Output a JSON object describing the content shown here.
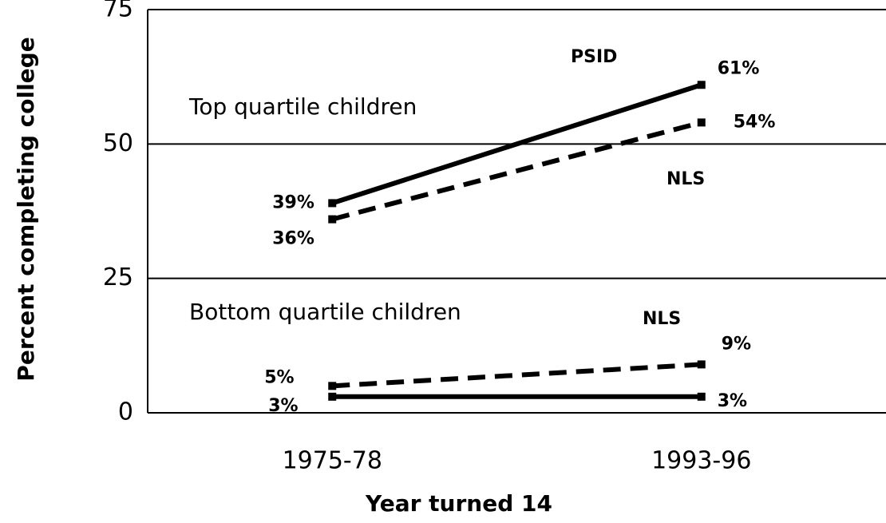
{
  "chart_data": {
    "type": "line",
    "categories": [
      "1975-78",
      "1993-96"
    ],
    "x_label": "Year turned 14",
    "y_label": "Percent completing college",
    "ylim": [
      0,
      75
    ],
    "yticks": [
      0,
      25,
      50,
      75
    ],
    "grid": true,
    "annotations": [
      "Top quartile children",
      "Bottom quartile children"
    ],
    "series": [
      {
        "name": "PSID",
        "color": "#000000",
        "dashed": false,
        "values": [
          39,
          61
        ],
        "value_labels": [
          "39%",
          "61%"
        ]
      },
      {
        "name": "NLS",
        "color": "#000000",
        "dashed": true,
        "values": [
          36,
          54
        ],
        "value_labels": [
          "36%",
          "54%"
        ]
      },
      {
        "name": "NLS",
        "color": "#000000",
        "dashed": true,
        "values": [
          5,
          9
        ],
        "value_labels": [
          "5%",
          "9%"
        ]
      },
      {
        "color": "#000000",
        "dashed": false,
        "values": [
          3,
          3
        ],
        "value_labels": [
          "3%",
          "3%"
        ]
      }
    ]
  }
}
